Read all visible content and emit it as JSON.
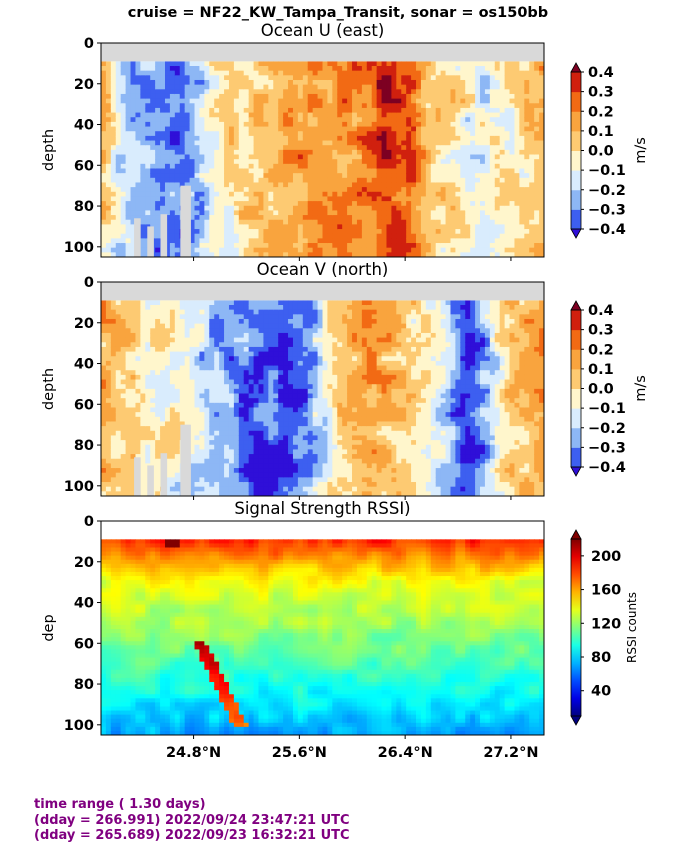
{
  "suptitle": "cruise = NF22_KW_Tampa_Transit,  sonar = os150bb",
  "footer": {
    "line1": "time range ( 1.30 days)",
    "line2": "(dday = 266.991) 2022/09/24 23:47:21 UTC",
    "line3": "(dday = 265.689) 2022/09/23 16:32:21 UTC"
  },
  "x_ticks": [
    "24.8°N",
    "25.6°N",
    "26.4°N",
    "27.2°N"
  ],
  "chart_data": [
    {
      "type": "heatmap",
      "title": "Ocean U (east)",
      "ylabel": "depth",
      "x_tick_values": [
        24.8,
        25.6,
        26.4,
        27.2
      ],
      "xlim": [
        24.1,
        27.45
      ],
      "ylim": [
        105,
        0
      ],
      "y_ticks": [
        0,
        20,
        40,
        60,
        80,
        100
      ],
      "colorbar": {
        "label": "m/s",
        "levels": [
          -0.4,
          -0.3,
          -0.2,
          -0.1,
          0.0,
          0.1,
          0.2,
          0.3,
          0.4
        ],
        "tick_labels": [
          "−0.4",
          "−0.3",
          "−0.2",
          "−0.1",
          "0.0",
          "0.1",
          "0.2",
          "0.3",
          "0.4"
        ],
        "colors": [
          "#2f0fd8",
          "#3d5ff0",
          "#8db7f5",
          "#d9ecfd",
          "#fff6cc",
          "#fdca72",
          "#f9a43e",
          "#f26a14",
          "#d0200e",
          "#7d0022"
        ]
      },
      "profile": [
        {
          "lat": 24.1,
          "u": 0.15
        },
        {
          "lat": 24.25,
          "u": -0.15
        },
        {
          "lat": 24.5,
          "u": -0.25
        },
        {
          "lat": 24.7,
          "u": -0.3
        },
        {
          "lat": 24.9,
          "u": -0.12
        },
        {
          "lat": 25.1,
          "u": 0.0
        },
        {
          "lat": 25.35,
          "u": 0.1
        },
        {
          "lat": 25.55,
          "u": 0.18
        },
        {
          "lat": 25.8,
          "u": 0.22
        },
        {
          "lat": 26.0,
          "u": 0.2
        },
        {
          "lat": 26.25,
          "u": 0.38
        },
        {
          "lat": 26.45,
          "u": 0.3
        },
        {
          "lat": 26.6,
          "u": 0.1
        },
        {
          "lat": 26.8,
          "u": 0.0
        },
        {
          "lat": 27.0,
          "u": -0.1
        },
        {
          "lat": 27.2,
          "u": -0.05
        },
        {
          "lat": 27.45,
          "u": 0.15
        }
      ]
    },
    {
      "type": "heatmap",
      "title": "Ocean V (north)",
      "ylabel": "depth",
      "x_tick_values": [
        24.8,
        25.6,
        26.4,
        27.2
      ],
      "xlim": [
        24.1,
        27.45
      ],
      "ylim": [
        105,
        0
      ],
      "y_ticks": [
        0,
        20,
        40,
        60,
        80,
        100
      ],
      "colorbar": {
        "label": "m/s",
        "levels": [
          -0.4,
          -0.3,
          -0.2,
          -0.1,
          0.0,
          0.1,
          0.2,
          0.3,
          0.4
        ],
        "tick_labels": [
          "−0.4",
          "−0.3",
          "−0.2",
          "−0.1",
          "0.0",
          "0.1",
          "0.2",
          "0.3",
          "0.4"
        ],
        "colors": [
          "#2f0fd8",
          "#3d5ff0",
          "#8db7f5",
          "#d9ecfd",
          "#fff6cc",
          "#fdca72",
          "#f9a43e",
          "#f26a14",
          "#d0200e",
          "#7d0022"
        ]
      },
      "profile": [
        {
          "lat": 24.1,
          "v": 0.15
        },
        {
          "lat": 24.3,
          "v": 0.05
        },
        {
          "lat": 24.55,
          "v": 0.0
        },
        {
          "lat": 24.75,
          "v": -0.1
        },
        {
          "lat": 24.95,
          "v": -0.25
        },
        {
          "lat": 25.2,
          "v": -0.3
        },
        {
          "lat": 25.45,
          "v": -0.38
        },
        {
          "lat": 25.65,
          "v": -0.3
        },
        {
          "lat": 25.9,
          "v": 0.05
        },
        {
          "lat": 26.1,
          "v": 0.15
        },
        {
          "lat": 26.3,
          "v": 0.1
        },
        {
          "lat": 26.5,
          "v": 0.0
        },
        {
          "lat": 26.7,
          "v": -0.15
        },
        {
          "lat": 26.85,
          "v": -0.38
        },
        {
          "lat": 27.0,
          "v": -0.25
        },
        {
          "lat": 27.2,
          "v": 0.05
        },
        {
          "lat": 27.45,
          "v": 0.15
        }
      ]
    },
    {
      "type": "heatmap",
      "title": "Signal Strength RSSI)",
      "ylabel": "dep",
      "x_tick_values": [
        24.8,
        25.6,
        26.4,
        27.2
      ],
      "xlim": [
        24.1,
        27.45
      ],
      "ylim": [
        105,
        0
      ],
      "y_ticks": [
        0,
        20,
        40,
        60,
        80,
        100
      ],
      "colorbar": {
        "label": "RSSI counts",
        "range": [
          10,
          220
        ],
        "tick_values": [
          40,
          80,
          120,
          160,
          200
        ],
        "tick_labels": [
          "40",
          "80",
          "120",
          "160",
          "200"
        ]
      },
      "depth_profile": [
        {
          "depth": 10,
          "rssi": 185
        },
        {
          "depth": 20,
          "rssi": 160
        },
        {
          "depth": 30,
          "rssi": 138
        },
        {
          "depth": 50,
          "rssi": 122
        },
        {
          "depth": 70,
          "rssi": 105
        },
        {
          "depth": 90,
          "rssi": 85
        },
        {
          "depth": 105,
          "rssi": 70
        }
      ]
    }
  ]
}
